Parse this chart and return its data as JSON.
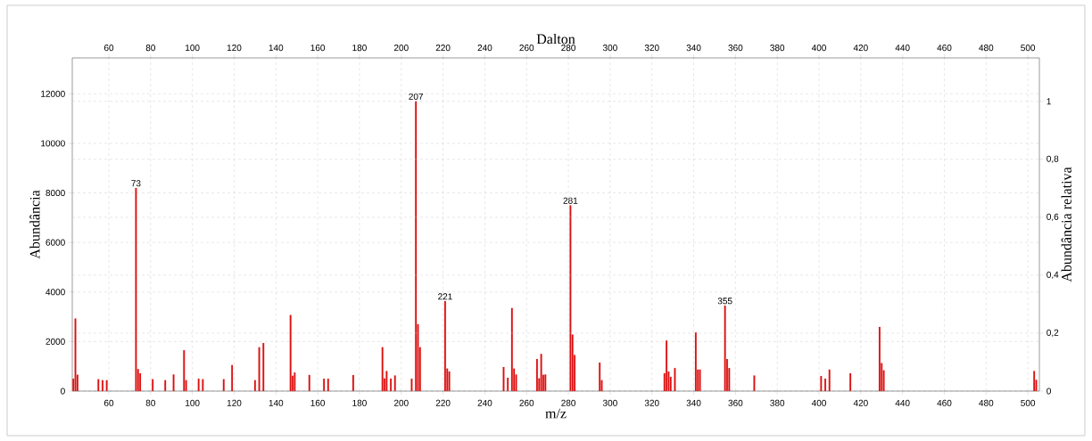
{
  "chart_data": {
    "type": "bar",
    "xlabel": "m/z",
    "ylabel": "Abundância",
    "x2label": "Dalton",
    "y2label": "Abundância relativa",
    "x": [
      43,
      44,
      45,
      55,
      57,
      59,
      73,
      74,
      75,
      81,
      87,
      91,
      96,
      97,
      103,
      105,
      115,
      119,
      130,
      132,
      134,
      147,
      148,
      149,
      156,
      163,
      165,
      177,
      191,
      192,
      193,
      195,
      197,
      205,
      207,
      208,
      209,
      221,
      222,
      223,
      249,
      251,
      253,
      254,
      255,
      265,
      266,
      267,
      268,
      269,
      281,
      282,
      283,
      295,
      296,
      326,
      327,
      328,
      329,
      331,
      341,
      342,
      343,
      355,
      356,
      357,
      369,
      401,
      403,
      405,
      415,
      429,
      430,
      431,
      503,
      504
    ],
    "values": [
      500,
      2930,
      660,
      480,
      440,
      440,
      8200,
      890,
      720,
      480,
      440,
      670,
      1650,
      440,
      500,
      480,
      480,
      1050,
      440,
      1770,
      1940,
      3070,
      620,
      750,
      650,
      500,
      500,
      650,
      1770,
      515,
      810,
      500,
      630,
      500,
      11700,
      2700,
      1770,
      3630,
      910,
      790,
      970,
      540,
      3350,
      910,
      670,
      1290,
      515,
      1500,
      660,
      670,
      7500,
      2280,
      1460,
      1150,
      440,
      720,
      2040,
      790,
      575,
      930,
      2370,
      870,
      870,
      3450,
      1290,
      930,
      630,
      610,
      500,
      870,
      720,
      2590,
      1130,
      840,
      810,
      455
    ],
    "color": "#dd1111",
    "xlim": [
      42.5,
      505.5
    ],
    "ylim": [
      0,
      13450
    ],
    "x2lim": [
      42.5,
      505.5
    ],
    "y2lim": [
      0,
      1.15
    ],
    "xticks": [
      60,
      80,
      100,
      120,
      140,
      160,
      180,
      200,
      220,
      240,
      260,
      280,
      300,
      320,
      340,
      360,
      380,
      400,
      420,
      440,
      460,
      480,
      500
    ],
    "x2ticks": [
      60,
      80,
      100,
      120,
      140,
      160,
      180,
      200,
      220,
      240,
      260,
      280,
      300,
      320,
      340,
      360,
      380,
      400,
      420,
      440,
      460,
      480,
      500
    ],
    "yticks": [
      0,
      2000,
      4000,
      6000,
      8000,
      10000,
      12000
    ],
    "y2ticks": [
      0,
      {
        "value": 0.2,
        "label": "0,2"
      },
      {
        "value": 0.4,
        "label": "0,4"
      },
      {
        "value": 0.6,
        "label": "0,6"
      },
      {
        "value": 0.8,
        "label": "0,8"
      },
      1
    ],
    "grid": true,
    "annotations": [
      {
        "text": "73",
        "x": 73,
        "y": 8200
      },
      {
        "text": "207",
        "x": 207,
        "y": 11700
      },
      {
        "text": "221",
        "x": 221,
        "y": 3630
      },
      {
        "text": "281",
        "x": 281,
        "y": 7500
      },
      {
        "text": "355",
        "x": 355,
        "y": 3450
      }
    ]
  }
}
